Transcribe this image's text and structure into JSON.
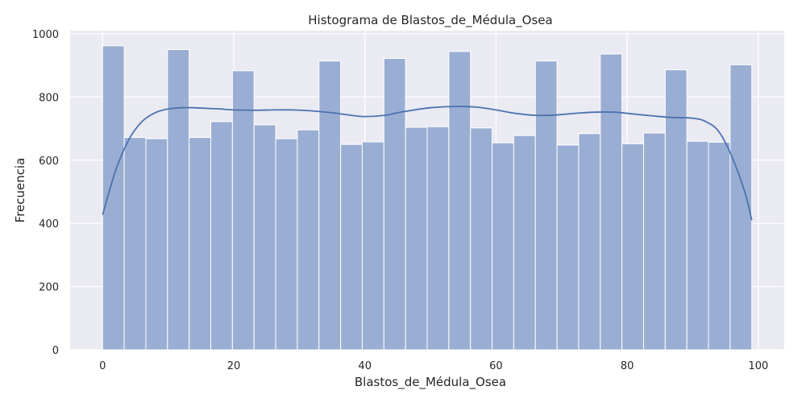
{
  "chart_data": {
    "type": "bar",
    "title": "Histograma de Blastos_de_Médula_Osea",
    "xlabel": "Blastos_de_Médula_Osea",
    "ylabel": "Frecuencia",
    "xlim": [
      -4.95,
      103.95
    ],
    "ylim": [
      0,
      1010
    ],
    "xticks": [
      0,
      20,
      40,
      60,
      80,
      100
    ],
    "yticks": [
      0,
      200,
      400,
      600,
      800,
      1000
    ],
    "grid": true,
    "bin_start": 0,
    "bin_width": 3.3,
    "values": [
      962,
      672,
      668,
      950,
      672,
      722,
      883,
      712,
      668,
      696,
      914,
      650,
      658,
      922,
      704,
      706,
      944,
      702,
      655,
      678,
      914,
      648,
      684,
      936,
      652,
      686,
      886,
      660,
      657,
      902
    ],
    "kde": {
      "x": [
        0,
        2,
        4,
        6,
        8,
        10,
        12,
        14,
        16,
        18,
        20,
        23,
        26,
        29,
        32,
        35,
        38,
        40,
        43,
        46,
        50,
        54,
        57,
        60,
        63,
        66,
        69,
        72,
        75,
        78,
        81,
        84,
        87,
        90,
        92,
        94,
        96,
        98,
        99
      ],
      "y": [
        427,
        568,
        665,
        722,
        750,
        762,
        766,
        766,
        764,
        762,
        759,
        758,
        759,
        759,
        756,
        750,
        742,
        738,
        742,
        754,
        766,
        770,
        768,
        759,
        748,
        742,
        743,
        748,
        752,
        752,
        746,
        740,
        735,
        733,
        722,
        690,
        610,
        495,
        410
      ]
    },
    "colors": {
      "bar_fill": "#9AAED3",
      "bar_edge": "#ffffff",
      "kde_line": "#4C72B0",
      "plot_bg": "#EAEAF2",
      "grid": "#ffffff"
    }
  }
}
